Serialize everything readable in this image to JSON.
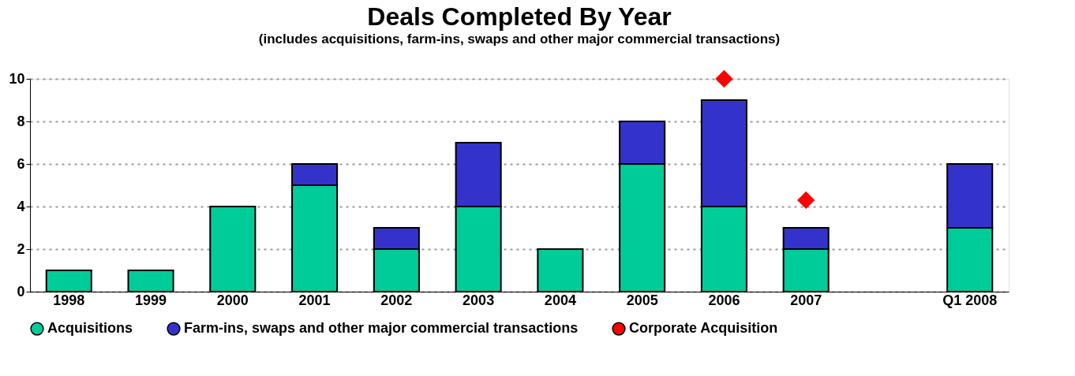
{
  "chart_data": {
    "type": "bar",
    "title": "Deals Completed By Year",
    "subtitle": "(includes acquisitions, farm-ins, swaps and other major commercial transactions)",
    "categories": [
      "1998",
      "1999",
      "2000",
      "2001",
      "2002",
      "2003",
      "2004",
      "2005",
      "2006",
      "2007",
      null,
      "Q1 2008"
    ],
    "stacked": true,
    "series": [
      {
        "name": "Acquisitions",
        "color": "#00cc99",
        "values": [
          1,
          1,
          4,
          5,
          2,
          4,
          2,
          6,
          4,
          2,
          null,
          3
        ]
      },
      {
        "name": "Farm-ins, swaps and other major commercial transactions",
        "color": "#3333cc",
        "values": [
          null,
          null,
          null,
          1,
          1,
          3,
          null,
          2,
          5,
          1,
          null,
          3
        ]
      },
      {
        "name": "Corporate Acquisition",
        "type": "scatter",
        "marker": "diamond",
        "color": "#ff0000",
        "values": [
          null,
          null,
          null,
          null,
          null,
          null,
          null,
          null,
          10,
          4.3,
          null,
          null
        ]
      }
    ],
    "ylim": [
      0,
      10
    ],
    "yticks": [
      0,
      2,
      4,
      6,
      8,
      10
    ],
    "grid": "y",
    "legend": "bottom"
  }
}
